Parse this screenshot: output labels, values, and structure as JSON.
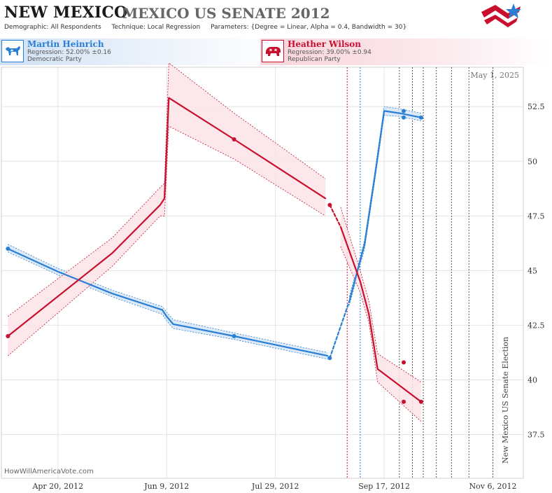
{
  "header": {
    "state": "NEW MEXICO",
    "race": "MEXICO US SENATE 2012",
    "demographic_label": "Demographic:",
    "demographic_value": "All Respondents",
    "technique_label": "Technique:",
    "technique_value": "Local Regression",
    "parameters_label": "Parameters:",
    "parameters_value": "{Degree = Linear, Alpha = 0.4, Bandwidth = 30}"
  },
  "candidates": {
    "dem": {
      "name": "Martin Heinrich",
      "regression": "Regression: 52.00% ±0.16",
      "party": "Democratic Party",
      "color": "#2a7fd4"
    },
    "rep": {
      "name": "Heather Wilson",
      "regression": "Regression: 39.00% ±0.94",
      "party": "Republican Party",
      "color": "#c8102e"
    }
  },
  "footer": {
    "watermark": "HowWillAmericaVote.com",
    "date": "May 1, 2025",
    "election_label": "New Mexico US Senate Election"
  },
  "icons": [
    "democrat-donkey-icon",
    "republican-elephant-icon",
    "site-logo-star-icon"
  ],
  "chart_data": {
    "type": "line",
    "x_type": "date",
    "x_range": [
      "2012-03-25",
      "2012-11-20"
    ],
    "x_ticks": [
      {
        "date": "2012-04-20",
        "label": "Apr 20, 2012"
      },
      {
        "date": "2012-06-09",
        "label": "Jun 9, 2012"
      },
      {
        "date": "2012-07-29",
        "label": "Jul 29, 2012"
      },
      {
        "date": "2012-09-17",
        "label": "Sep 17, 2012"
      },
      {
        "date": "2012-11-06",
        "label": "Nov 6, 2012"
      }
    ],
    "y_range": [
      35.5,
      54.3
    ],
    "y_ticks": [
      37.5,
      40,
      42.5,
      45,
      47.5,
      50,
      52.5
    ],
    "y_tick_labels": [
      "37.5",
      "40",
      "42.5",
      "45",
      "47.5",
      "50",
      "52.5"
    ],
    "grid": true,
    "vertical_markers": [
      {
        "date": "2012-08-31",
        "color": "#c8102e",
        "style": "dotted"
      },
      {
        "date": "2012-09-06",
        "color": "#2a7fd4",
        "style": "dotted"
      },
      {
        "date": "2012-09-24",
        "color": "#555555",
        "style": "dotted"
      },
      {
        "date": "2012-09-30",
        "color": "#555555",
        "style": "dotted"
      },
      {
        "date": "2012-10-05",
        "color": "#555555",
        "style": "dotted"
      },
      {
        "date": "2012-10-11",
        "color": "#555555",
        "style": "dotted"
      },
      {
        "date": "2012-10-18",
        "color": "#555555",
        "style": "dotted"
      },
      {
        "date": "2012-10-26",
        "color": "#555555",
        "style": "dotted"
      },
      {
        "date": "2012-11-06",
        "color": "#555555",
        "style": "dotted"
      }
    ],
    "series": [
      {
        "name": "Martin Heinrich",
        "color": "#2a7fd4",
        "band_color": "#d6e6f6",
        "segments": [
          {
            "style": "solid",
            "points": [
              {
                "x": "2012-03-28",
                "y": 46.0,
                "lo": 45.85,
                "hi": 46.2
              },
              {
                "x": "2012-04-20",
                "y": 44.95,
                "lo": 44.8,
                "hi": 45.1
              },
              {
                "x": "2012-05-15",
                "y": 43.95,
                "lo": 43.8,
                "hi": 44.1
              },
              {
                "x": "2012-06-07",
                "y": 43.2,
                "lo": 43.0,
                "hi": 43.35
              },
              {
                "x": "2012-06-09",
                "y": 42.9,
                "lo": 42.7,
                "hi": 43.1
              },
              {
                "x": "2012-06-12",
                "y": 42.55,
                "lo": 42.35,
                "hi": 42.75
              },
              {
                "x": "2012-07-10",
                "y": 42.0,
                "lo": 41.85,
                "hi": 42.15
              },
              {
                "x": "2012-08-10",
                "y": 41.35,
                "lo": 41.2,
                "hi": 41.5
              },
              {
                "x": "2012-08-22",
                "y": 41.1,
                "lo": 40.95,
                "hi": 41.25
              }
            ]
          },
          {
            "style": "dashed",
            "points": [
              {
                "x": "2012-08-23",
                "y": 41.0
              },
              {
                "x": "2012-09-01",
                "y": 43.6
              }
            ]
          },
          {
            "style": "solid",
            "points": [
              {
                "x": "2012-09-01",
                "y": 43.6,
                "lo": 43.4,
                "hi": 43.8
              },
              {
                "x": "2012-09-08",
                "y": 46.2,
                "lo": 46.0,
                "hi": 46.4
              },
              {
                "x": "2012-09-13",
                "y": 49.5,
                "lo": 49.3,
                "hi": 49.7
              },
              {
                "x": "2012-09-17",
                "y": 52.3,
                "lo": 52.1,
                "hi": 52.5
              },
              {
                "x": "2012-09-24",
                "y": 52.2,
                "lo": 52.05,
                "hi": 52.4
              },
              {
                "x": "2012-10-04",
                "y": 52.0,
                "lo": 51.85,
                "hi": 52.2
              }
            ]
          }
        ],
        "poll_points": [
          {
            "x": "2012-03-28",
            "y": 46.0
          },
          {
            "x": "2012-07-10",
            "y": 42.0
          },
          {
            "x": "2012-08-23",
            "y": 41.0
          },
          {
            "x": "2012-09-26",
            "y": 52.3
          },
          {
            "x": "2012-09-26",
            "y": 52.0
          },
          {
            "x": "2012-10-04",
            "y": 52.0
          }
        ]
      },
      {
        "name": "Heather Wilson",
        "color": "#c8102e",
        "band_color": "#fbe3e8",
        "segments": [
          {
            "style": "solid",
            "points": [
              {
                "x": "2012-03-28",
                "y": 42.0,
                "lo": 41.1,
                "hi": 42.9
              },
              {
                "x": "2012-05-15",
                "y": 45.8,
                "lo": 45.2,
                "hi": 46.5
              },
              {
                "x": "2012-06-06",
                "y": 48.0,
                "lo": 47.5,
                "hi": 48.8
              },
              {
                "x": "2012-06-08",
                "y": 48.3,
                "lo": 47.5,
                "hi": 49.0
              },
              {
                "x": "2012-06-10",
                "y": 52.9,
                "lo": 51.6,
                "hi": 54.5
              },
              {
                "x": "2012-07-10",
                "y": 51.0,
                "lo": 50.1,
                "hi": 52.2
              },
              {
                "x": "2012-08-21",
                "y": 48.3,
                "lo": 47.5,
                "hi": 49.2
              }
            ]
          },
          {
            "style": "dashed",
            "points": [
              {
                "x": "2012-08-23",
                "y": 48.0
              },
              {
                "x": "2012-08-28",
                "y": 47.0
              }
            ]
          },
          {
            "style": "solid",
            "points": [
              {
                "x": "2012-08-28",
                "y": 47.0,
                "lo": 46.1,
                "hi": 47.9
              },
              {
                "x": "2012-09-06",
                "y": 44.5,
                "lo": 44.0,
                "hi": 45.0
              },
              {
                "x": "2012-09-10",
                "y": 43.0,
                "lo": 42.6,
                "hi": 43.6
              },
              {
                "x": "2012-09-14",
                "y": 40.5,
                "lo": 39.9,
                "hi": 41.2
              },
              {
                "x": "2012-10-04",
                "y": 39.0,
                "lo": 38.1,
                "hi": 39.9
              }
            ]
          }
        ],
        "poll_points": [
          {
            "x": "2012-03-28",
            "y": 42.0
          },
          {
            "x": "2012-07-10",
            "y": 51.0
          },
          {
            "x": "2012-08-23",
            "y": 48.0
          },
          {
            "x": "2012-09-26",
            "y": 40.8
          },
          {
            "x": "2012-09-26",
            "y": 39.0
          },
          {
            "x": "2012-10-04",
            "y": 39.0
          }
        ]
      }
    ]
  }
}
